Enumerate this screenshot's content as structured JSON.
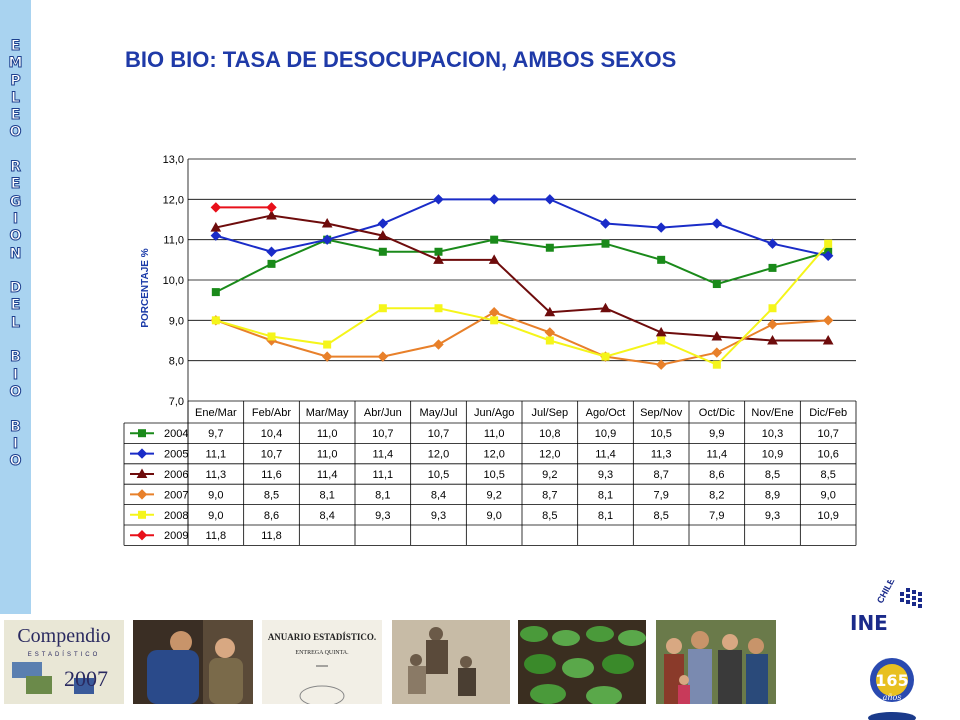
{
  "sidebar": {
    "text": "EMPLEO REGION DEL BIO BIO"
  },
  "chart_data": {
    "type": "line",
    "title": "BIO BIO: TASA DE DESOCUPACION, AMBOS SEXOS",
    "xlabel": "",
    "ylabel": "PORCENTAJE %",
    "ylim": [
      7.0,
      13.0
    ],
    "yticks": [
      "7,0",
      "8,0",
      "9,0",
      "10,0",
      "11,0",
      "12,0",
      "13,0"
    ],
    "grid": true,
    "legend": "data-table-below",
    "categories": [
      "Ene/Mar",
      "Feb/Abr",
      "Mar/May",
      "Abr/Jun",
      "May/Jul",
      "Jun/Ago",
      "Jul/Sep",
      "Ago/Oct",
      "Sep/Nov",
      "Oct/Dic",
      "Nov/Ene",
      "Dic/Feb"
    ],
    "series": [
      {
        "name": "2004",
        "color": "#1a8a1a",
        "marker": "square",
        "values": [
          9.7,
          10.4,
          11.0,
          10.7,
          10.7,
          11.0,
          10.8,
          10.9,
          10.5,
          9.9,
          10.3,
          10.7
        ],
        "labels": [
          "9,7",
          "10,4",
          "11,0",
          "10,7",
          "10,7",
          "11,0",
          "10,8",
          "10,9",
          "10,5",
          "9,9",
          "10,3",
          "10,7"
        ]
      },
      {
        "name": "2005",
        "color": "#1a2cc8",
        "marker": "diamond",
        "values": [
          11.1,
          10.7,
          11.0,
          11.4,
          12.0,
          12.0,
          12.0,
          11.4,
          11.3,
          11.4,
          10.9,
          10.6
        ],
        "labels": [
          "11,1",
          "10,7",
          "11,0",
          "11,4",
          "12,0",
          "12,0",
          "12,0",
          "11,4",
          "11,3",
          "11,4",
          "10,9",
          "10,6"
        ]
      },
      {
        "name": "2006",
        "color": "#6e0c0c",
        "marker": "triangle",
        "values": [
          11.3,
          11.6,
          11.4,
          11.1,
          10.5,
          10.5,
          9.2,
          9.3,
          8.7,
          8.6,
          8.5,
          8.5
        ],
        "labels": [
          "11,3",
          "11,6",
          "11,4",
          "11,1",
          "10,5",
          "10,5",
          "9,2",
          "9,3",
          "8,7",
          "8,6",
          "8,5",
          "8,5"
        ]
      },
      {
        "name": "2007",
        "color": "#e8802a",
        "marker": "diamond",
        "values": [
          9.0,
          8.5,
          8.1,
          8.1,
          8.4,
          9.2,
          8.7,
          8.1,
          7.9,
          8.2,
          8.9,
          9.0
        ],
        "labels": [
          "9,0",
          "8,5",
          "8,1",
          "8,1",
          "8,4",
          "9,2",
          "8,7",
          "8,1",
          "7,9",
          "8,2",
          "8,9",
          "9,0"
        ]
      },
      {
        "name": "2008",
        "color": "#f5f51a",
        "marker": "square",
        "values": [
          9.0,
          8.6,
          8.4,
          9.3,
          9.3,
          9.0,
          8.5,
          8.1,
          8.5,
          7.9,
          9.3,
          10.9
        ],
        "labels": [
          "9,0",
          "8,6",
          "8,4",
          "9,3",
          "9,3",
          "9,0",
          "8,5",
          "8,1",
          "8,5",
          "7,9",
          "9,3",
          "10,9"
        ]
      },
      {
        "name": "2009",
        "color": "#e8101a",
        "marker": "diamond",
        "values": [
          11.8,
          11.8,
          null,
          null,
          null,
          null,
          null,
          null,
          null,
          null,
          null,
          null
        ],
        "labels": [
          "11,8",
          "11,8",
          "",
          "",
          "",
          "",
          "",
          "",
          "",
          "",
          "",
          ""
        ]
      }
    ]
  },
  "footer": {
    "compendio": {
      "word": "Compendio",
      "sub": "ESTADÍSTICO",
      "year": "2007"
    },
    "anuario": {
      "title": "ANUARIO ESTADÍSTICO.",
      "sub": "ENTREGA QUINTA."
    },
    "ine": {
      "country": "CHILE",
      "name": "INE",
      "years": "165",
      "anos": "años"
    }
  }
}
